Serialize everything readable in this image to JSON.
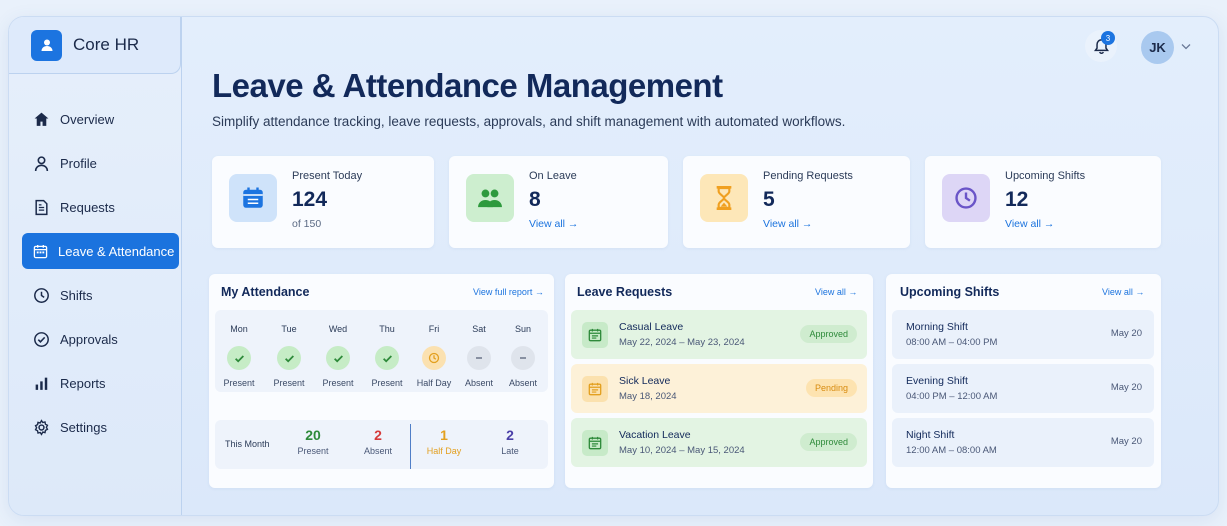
{
  "app": {
    "name": "Core HR"
  },
  "sidebar": {
    "items": [
      {
        "label": "Overview",
        "icon": "home-icon"
      },
      {
        "label": "Profile",
        "icon": "user-icon"
      },
      {
        "label": "Requests",
        "icon": "document-icon"
      },
      {
        "label": "Leave & Attendance",
        "icon": "calendar-icon",
        "active": true
      },
      {
        "label": "Shifts",
        "icon": "clock-icon"
      },
      {
        "label": "Approvals",
        "icon": "check-circle-icon"
      },
      {
        "label": "Reports",
        "icon": "bar-chart-icon"
      },
      {
        "label": "Settings",
        "icon": "gear-icon"
      }
    ]
  },
  "topbar": {
    "notifications_count": "3",
    "user_initials": "JK"
  },
  "header": {
    "title": "Leave & Attendance Management",
    "subtitle": "Simplify attendance tracking, leave requests, approvals, and shift management with automated workflows."
  },
  "stats": [
    {
      "label": "Present Today",
      "value": "124",
      "sub": "of 150",
      "icon": "calendar-icon",
      "color": "#1c74e0",
      "bg": "#cfe3fa"
    },
    {
      "label": "On Leave",
      "value": "8",
      "link": "View all →",
      "icon": "people-icon",
      "color": "#2e9a3e",
      "bg": "#cdeecf"
    },
    {
      "label": "Pending Requests",
      "value": "5",
      "link": "View all →",
      "icon": "hourglass-icon",
      "color": "#f0a020",
      "bg": "#fde7b8"
    },
    {
      "label": "Upcoming Shifts",
      "value": "12",
      "link": "View all →",
      "icon": "clock-icon",
      "color": "#6a55c8",
      "bg": "#ddd6f6"
    }
  ],
  "attendance": {
    "title": "My Attendance",
    "link": "View full report →",
    "days": [
      {
        "day": "Mon",
        "status": "Present",
        "kind": "present"
      },
      {
        "day": "Tue",
        "status": "Present",
        "kind": "present"
      },
      {
        "day": "Wed",
        "status": "Present",
        "kind": "present"
      },
      {
        "day": "Thu",
        "status": "Present",
        "kind": "present"
      },
      {
        "day": "Fri",
        "status": "Half Day",
        "kind": "half"
      },
      {
        "day": "Sat",
        "status": "Absent",
        "kind": "absent"
      },
      {
        "day": "Sun",
        "status": "Absent",
        "kind": "absent"
      }
    ],
    "month_label": "This Month",
    "month_stats": [
      {
        "value": "20",
        "label": "Present",
        "color": "#2e8a3a"
      },
      {
        "value": "2",
        "label": "Absent",
        "color": "#d63a3a"
      },
      {
        "value": "1",
        "label": "Half Day",
        "color": "#e3a020"
      },
      {
        "value": "2",
        "label": "Late",
        "color": "#4a3fa8"
      }
    ]
  },
  "leave_requests": {
    "title": "Leave Requests",
    "link": "View all →",
    "items": [
      {
        "type": "Casual Leave",
        "dates": "May 22, 2024 – May 23, 2024",
        "status": "Approved",
        "kind": "approved"
      },
      {
        "type": "Sick Leave",
        "dates": "May 18, 2024",
        "status": "Pending",
        "kind": "pending"
      },
      {
        "type": "Vacation Leave",
        "dates": "May 10, 2024 – May 15, 2024",
        "status": "Approved",
        "kind": "approved"
      }
    ]
  },
  "shifts": {
    "title": "Upcoming Shifts",
    "link": "View all →",
    "items": [
      {
        "name": "Morning Shift",
        "time": "08:00 AM – 04:00 PM",
        "date": "May 20"
      },
      {
        "name": "Evening Shift",
        "time": "04:00 PM – 12:00 AM",
        "date": "May 20"
      },
      {
        "name": "Night Shift",
        "time": "12:00 AM – 08:00 AM",
        "date": "May 20"
      }
    ]
  }
}
